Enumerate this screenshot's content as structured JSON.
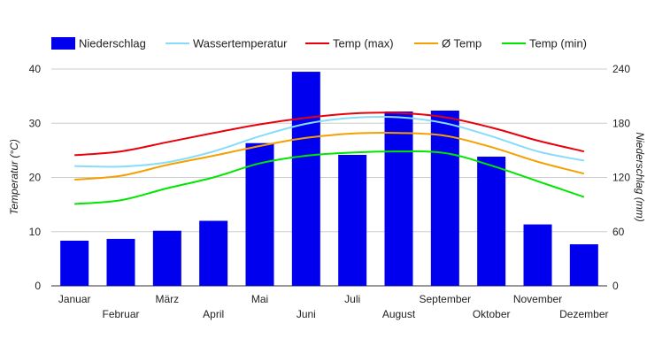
{
  "chart_data": {
    "type": "bar",
    "categories": [
      "Januar",
      "Februar",
      "März",
      "April",
      "Mai",
      "Juni",
      "Juli",
      "August",
      "September",
      "Oktober",
      "November",
      "Dezember"
    ],
    "ylabel_left": "Temperatur (°C)",
    "ylabel_right": "Niederschlag (mm)",
    "ylim_left": [
      0,
      40
    ],
    "yticks_left": [
      "0",
      "10",
      "20",
      "30",
      "40"
    ],
    "ylim_right": [
      0,
      240
    ],
    "yticks_right": [
      "0",
      "60",
      "120",
      "180",
      "240"
    ],
    "grid": true,
    "legend_position": "top",
    "bars": {
      "name": "Niederschlag",
      "axis": "right",
      "color": "#0000ee",
      "values": [
        50,
        52,
        61,
        72,
        158,
        237,
        145,
        193,
        194,
        143,
        68,
        46
      ]
    },
    "series": [
      {
        "name": "Wassertemperatur",
        "axis": "left",
        "color": "#87dcfa",
        "values": [
          22.1,
          22.0,
          22.8,
          24.8,
          27.6,
          29.9,
          31.0,
          31.1,
          30.0,
          27.6,
          24.8,
          23.1
        ]
      },
      {
        "name": "Temp (max)",
        "axis": "left",
        "color": "#e8000b",
        "values": [
          24.1,
          24.8,
          26.5,
          28.2,
          29.8,
          31.0,
          31.8,
          31.9,
          31.1,
          29.2,
          26.8,
          24.8
        ]
      },
      {
        "name": "Ø Temp",
        "axis": "left",
        "color": "#f5a000",
        "values": [
          19.6,
          20.3,
          22.3,
          24.0,
          25.8,
          27.3,
          28.1,
          28.2,
          27.7,
          25.6,
          22.9,
          20.7
        ]
      },
      {
        "name": "Temp (min)",
        "axis": "left",
        "color": "#00e600",
        "values": [
          15.1,
          15.8,
          18.0,
          20.0,
          22.6,
          24.0,
          24.6,
          24.8,
          24.5,
          22.2,
          19.3,
          16.4
        ]
      }
    ]
  }
}
